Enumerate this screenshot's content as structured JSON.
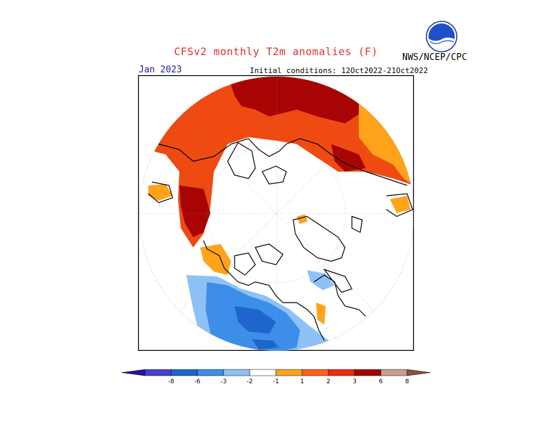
{
  "header": {
    "title": "CFSv2 monthly T2m anomalies (F)",
    "agency": "NWS/NCEP/CPC",
    "logo_icon": "noaa-logo-icon",
    "month": "Jan 2023",
    "initial_conditions": "Initial conditions: 12Oct2022-21Oct2022"
  },
  "map": {
    "projection": "north polar stereographic",
    "graticule": "dotted"
  },
  "colorbar": {
    "labels": [
      "-8",
      "-6",
      "-3",
      "-2",
      "-1",
      "1",
      "2",
      "3",
      "6",
      "8"
    ],
    "colors": [
      "#2a0fa0",
      "#4a40d0",
      "#1e66cc",
      "#3d8ee8",
      "#8ec2f6",
      "#ffffff",
      "#ffa41a",
      "#ff6020",
      "#ee2c08",
      "#a40404",
      "#c8a090",
      "#8a5040"
    ]
  }
}
